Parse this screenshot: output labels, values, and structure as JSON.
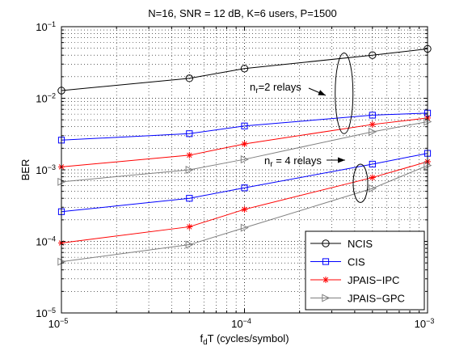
{
  "chart_data": {
    "type": "line",
    "title": "N=16, SNR = 12 dB, K=6 users, P=1500",
    "xlabel": "f",
    "xlabel_sub": "d",
    "xlabel_rest": "T (cycles/symbol)",
    "ylabel": "BER",
    "xscale": "log",
    "yscale": "log",
    "xlim": [
      1e-05,
      0.001
    ],
    "ylim": [
      1e-05,
      0.1
    ],
    "grid": true,
    "legend_position": "bottom-right",
    "x_ticks": [
      {
        "value": 1e-05,
        "base": "10",
        "exp": "−5"
      },
      {
        "value": 0.0001,
        "base": "10",
        "exp": "−4"
      },
      {
        "value": 0.001,
        "base": "10",
        "exp": "−3"
      }
    ],
    "y_ticks": [
      {
        "value": 1e-05,
        "base": "10",
        "exp": "−5"
      },
      {
        "value": 0.0001,
        "base": "10",
        "exp": "−4"
      },
      {
        "value": 0.001,
        "base": "10",
        "exp": "−3"
      },
      {
        "value": 0.01,
        "base": "10",
        "exp": "−2"
      },
      {
        "value": 0.1,
        "base": "10",
        "exp": "−1"
      }
    ],
    "x": [
      1e-05,
      5e-05,
      0.0001,
      0.0005,
      0.001
    ],
    "series": [
      {
        "name": "NCIS",
        "color": "#000000",
        "marker": "circle",
        "group": "n_r=2 relays",
        "values": [
          0.0128,
          0.019,
          0.026,
          0.04,
          0.049
        ]
      },
      {
        "name": "CIS",
        "color": "#0000ff",
        "marker": "square",
        "group": "n_r=2 relays",
        "values": [
          0.0026,
          0.0032,
          0.0041,
          0.0058,
          0.0062
        ]
      },
      {
        "name": "JPAIS−IPC",
        "color": "#ff0000",
        "marker": "star",
        "group": "n_r=2 relays",
        "values": [
          0.0011,
          0.0016,
          0.0023,
          0.0043,
          0.0053
        ]
      },
      {
        "name": "JPAIS−GPC",
        "color": "#808080",
        "marker": "triangle-right",
        "group": "n_r=2 relays",
        "values": [
          0.00068,
          0.001,
          0.0014,
          0.0034,
          0.0047
        ]
      },
      {
        "name": "CIS",
        "color": "#0000ff",
        "marker": "square",
        "group": "n_r=4 relays",
        "show_in_legend": false,
        "values": [
          0.00026,
          0.0004,
          0.00056,
          0.0012,
          0.0017
        ]
      },
      {
        "name": "JPAIS−IPC",
        "color": "#ff0000",
        "marker": "star",
        "group": "n_r=4 relays",
        "show_in_legend": false,
        "values": [
          9.5e-05,
          0.00016,
          0.00028,
          0.00078,
          0.0013
        ]
      },
      {
        "name": "JPAIS−GPC",
        "color": "#808080",
        "marker": "triangle-right",
        "group": "n_r=4 relays",
        "show_in_legend": false,
        "values": [
          5.2e-05,
          9e-05,
          0.000155,
          0.00055,
          0.00115
        ]
      }
    ],
    "legend": [
      {
        "label": "NCIS",
        "color": "#000000",
        "marker": "circle"
      },
      {
        "label": "CIS",
        "color": "#0000ff",
        "marker": "square"
      },
      {
        "label": "JPAIS−IPC",
        "color": "#ff0000",
        "marker": "star"
      },
      {
        "label": "JPAIS−GPC",
        "color": "#808080",
        "marker": "triangle-right"
      }
    ],
    "annotations": [
      {
        "pre": "n",
        "sub": "r",
        "post": "=2 relays",
        "ellipse_center": [
          0.00035,
          0.009
        ],
        "ellipse_span_y": [
          0.0032,
          0.043
        ]
      },
      {
        "pre": "n",
        "sub": "r",
        "post": " = 4 relays",
        "ellipse_center": [
          0.00043,
          0.00065
        ],
        "ellipse_span_y": [
          0.00035,
          0.0012
        ]
      }
    ]
  }
}
